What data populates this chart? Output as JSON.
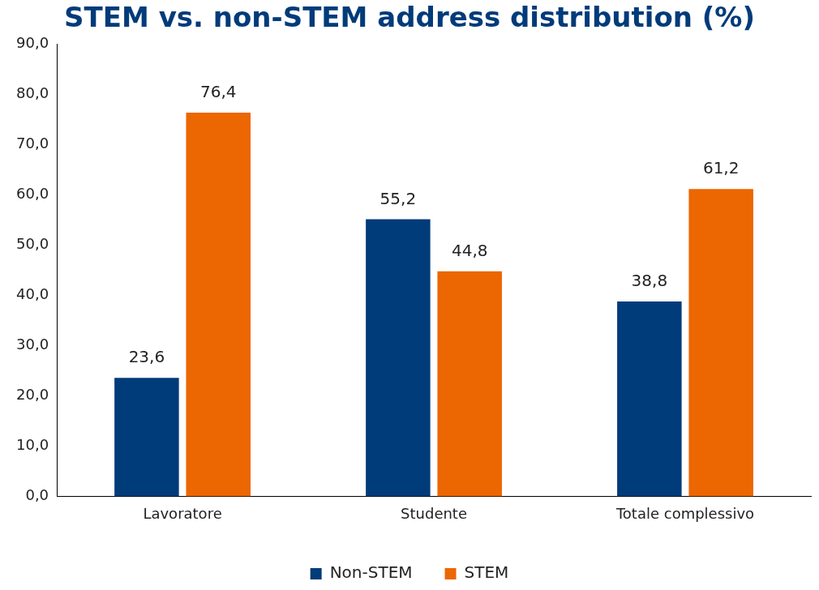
{
  "chart_data": {
    "type": "bar",
    "title": "STEM vs. non-STEM address distribution (%)",
    "categories": [
      "Lavoratore",
      "Studente",
      "Totale complessivo"
    ],
    "series": [
      {
        "name": "Non-STEM",
        "color": "#003b7a",
        "values": [
          23.6,
          55.2,
          38.8
        ],
        "value_labels": [
          "23,6",
          "55,2",
          "38,8"
        ]
      },
      {
        "name": "STEM",
        "color": "#ec6602",
        "values": [
          76.4,
          44.8,
          61.2
        ],
        "value_labels": [
          "76,4",
          "44,8",
          "61,2"
        ]
      }
    ],
    "ylim": [
      0,
      90
    ],
    "yticks": [
      {
        "value": 0,
        "label": "0,0"
      },
      {
        "value": 10,
        "label": "10,0"
      },
      {
        "value": 20,
        "label": "20,0"
      },
      {
        "value": 30,
        "label": "30,0"
      },
      {
        "value": 40,
        "label": "40,0"
      },
      {
        "value": 50,
        "label": "50,0"
      },
      {
        "value": 60,
        "label": "60,0"
      },
      {
        "value": 70,
        "label": "70,0"
      },
      {
        "value": 80,
        "label": "80,0"
      },
      {
        "value": 90,
        "label": "90,0"
      }
    ],
    "grid": false,
    "legend": "bottom"
  }
}
